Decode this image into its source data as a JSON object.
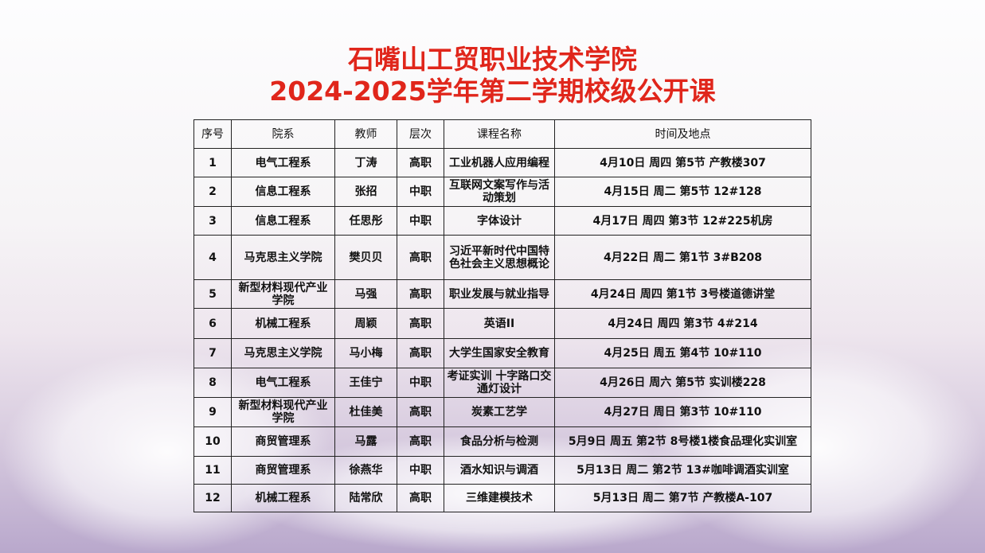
{
  "title": {
    "line1": "石嘴山工贸职业技术学院",
    "line2": "2024-2025学年第二学期校级公开课"
  },
  "table": {
    "headers": [
      "序号",
      "院系",
      "教师",
      "层次",
      "课程名称",
      "时间及地点"
    ],
    "rows": [
      [
        "1",
        "电气工程系",
        "丁涛",
        "高职",
        "工业机器人应用编程",
        "4月10日 周四 第5节 产教楼307"
      ],
      [
        "2",
        "信息工程系",
        "张招",
        "中职",
        "互联网文案写作与活动策划",
        "4月15日 周二  第5节 12#128"
      ],
      [
        "3",
        "信息工程系",
        "任思彤",
        "中职",
        "字体设计",
        "4月17日 周四  第3节 12#225机房"
      ],
      [
        "4",
        "马克思主义学院",
        "樊贝贝",
        "高职",
        "习近平新时代中国特色社会主义思想概论",
        "4月22日 周二 第1节 3#B208"
      ],
      [
        "5",
        "新型材料现代产业学院",
        "马强",
        "高职",
        "职业发展与就业指导",
        "4月24日 周四  第1节 3号楼道德讲堂"
      ],
      [
        "6",
        "机械工程系",
        "周颖",
        "高职",
        "英语II",
        "4月24日 周四 第3节 4#214"
      ],
      [
        "7",
        "马克思主义学院",
        "马小梅",
        "高职",
        "大学生国家安全教育",
        "4月25日 周五 第4节 10#110"
      ],
      [
        "8",
        "电气工程系",
        "王佳宁",
        "中职",
        "考证实训 十字路口交通灯设计",
        "4月26日 周六 第5节 实训楼228"
      ],
      [
        "9",
        "新型材料现代产业学院",
        "杜佳美",
        "高职",
        "炭素工艺学",
        "4月27日 周日 第3节 10#110"
      ],
      [
        "10",
        "商贸管理系",
        "马露",
        "高职",
        "食品分析与检测",
        "5月9日 周五 第2节 8号楼1楼食品理化实训室"
      ],
      [
        "11",
        "商贸管理系",
        "徐燕华",
        "中职",
        "酒水知识与调酒",
        "5月13日 周二 第2节 13#咖啡调酒实训室"
      ],
      [
        "12",
        "机械工程系",
        "陆常欣",
        "高职",
        "三维建模技术",
        "5月13日 周二 第7节 产教楼A-107"
      ]
    ]
  },
  "colors": {
    "title": "#e0261b",
    "border": "#222222"
  }
}
